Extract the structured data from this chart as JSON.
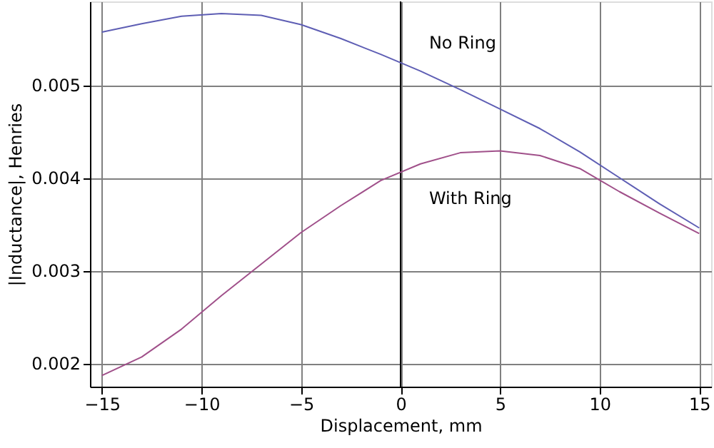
{
  "chart_data": {
    "type": "line",
    "xlabel": "Displacement, mm",
    "ylabel": "|Inductance|, Henries",
    "x": [
      -15,
      -13,
      -11,
      -9,
      -7,
      -5,
      -3,
      -1,
      1,
      3,
      5,
      7,
      9,
      11,
      13,
      15
    ],
    "series": [
      {
        "name": "No Ring",
        "color": "#5e5eb4",
        "values": [
          0.00557,
          0.00566,
          0.00574,
          0.00577,
          0.00575,
          0.00565,
          0.0055,
          0.00533,
          0.00515,
          0.00495,
          0.00474,
          0.00453,
          0.00428,
          0.004,
          0.00372,
          0.00346
        ]
      },
      {
        "name": "With Ring",
        "color": "#a0508a",
        "values": [
          0.00187,
          0.00207,
          0.00237,
          0.00273,
          0.00307,
          0.00341,
          0.0037,
          0.00397,
          0.00415,
          0.00427,
          0.00429,
          0.00424,
          0.0041,
          0.00385,
          0.00362,
          0.0034
        ]
      }
    ],
    "xlim": [
      -15.6,
      15.6
    ],
    "xticks": [
      -15,
      -10,
      -5,
      0,
      5,
      10,
      15
    ],
    "ylim": [
      0.00175,
      0.0059
    ],
    "yticks": [
      0.002,
      0.003,
      0.004,
      0.005
    ],
    "ref_lines": [
      {
        "axis": "x",
        "value": 0,
        "color": "#000000"
      }
    ],
    "grid": true,
    "marker": "none",
    "line_style": "solid"
  }
}
